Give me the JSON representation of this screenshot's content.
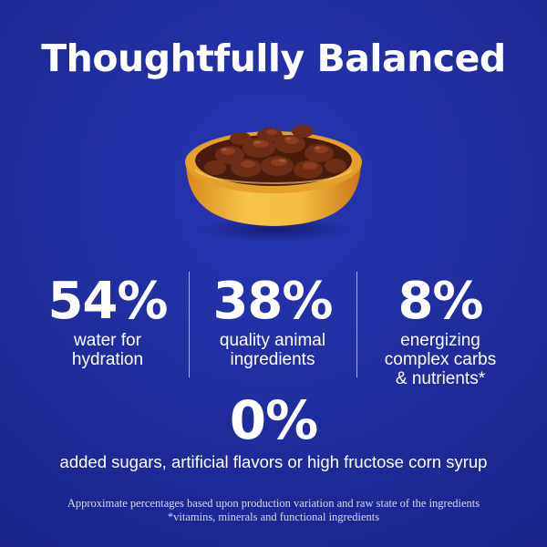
{
  "heading": "Thoughtfully Balanced",
  "stats": [
    {
      "value": "54%",
      "lines": [
        "water for",
        "hydration"
      ]
    },
    {
      "value": "38%",
      "lines": [
        "quality animal",
        "ingredients"
      ]
    },
    {
      "value": "8%",
      "lines": [
        "energizing",
        "complex carbs",
        "& nutrients*"
      ]
    }
  ],
  "highlight": {
    "value": "0%",
    "text": "added sugars, artificial flavors or high fructose corn syrup"
  },
  "footnotes": [
    "Approximate percentages based upon production variation and raw state of the ingredients",
    "*vitamins, minerals and functional ingredients"
  ],
  "colors": {
    "background": "#1f2b99",
    "text": "#ffffff",
    "bowl": "#f2b63a",
    "food": "#5a2412"
  },
  "image": "bowl-of-wet-food"
}
